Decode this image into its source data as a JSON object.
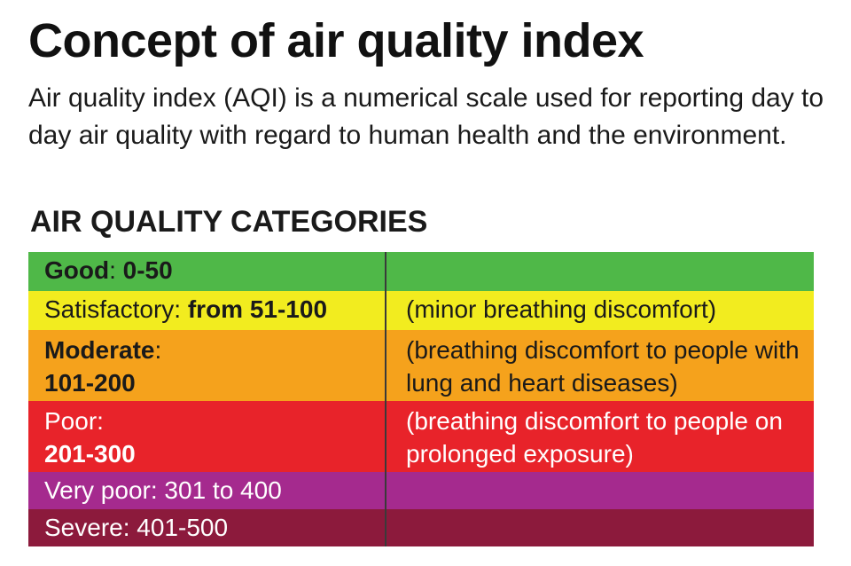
{
  "title": "Concept of air quality index",
  "intro": "Air quality index (AQI) is a numerical scale used for reporting day to day air quality with regard to human health and the environment.",
  "categories_heading": "AIR QUALITY CATEGORIES",
  "categories": [
    {
      "name": "Good",
      "separator": ":",
      "range": " 0-50",
      "description": "",
      "color": "#4fb848",
      "text_color": "#1a1a1a"
    },
    {
      "name": "Satisfactory",
      "separator": ":",
      "range": " from 51-100",
      "description": "(minor breathing discomfort)",
      "color": "#f2ec1f",
      "text_color": "#1a1a1a"
    },
    {
      "name": "Moderate",
      "separator": ":",
      "range": "101-200",
      "description": "(breathing discomfort to people with lung and heart diseases)",
      "color": "#f5a21c",
      "text_color": "#1a1a1a"
    },
    {
      "name": "Poor",
      "separator": ":",
      "range": "201-300",
      "description": "(breathing discomfort to people on prolonged exposure)",
      "color": "#e8232a",
      "text_color": "#ffffff"
    },
    {
      "name": "Very poor",
      "separator": ":",
      "range": " 301 to 400",
      "description": "",
      "color": "#a52a8e",
      "text_color": "#ffffff"
    },
    {
      "name": "Severe",
      "separator": ":",
      "range": " 401-500",
      "description": "",
      "color": "#8c1a3c",
      "text_color": "#ffffff"
    }
  ]
}
